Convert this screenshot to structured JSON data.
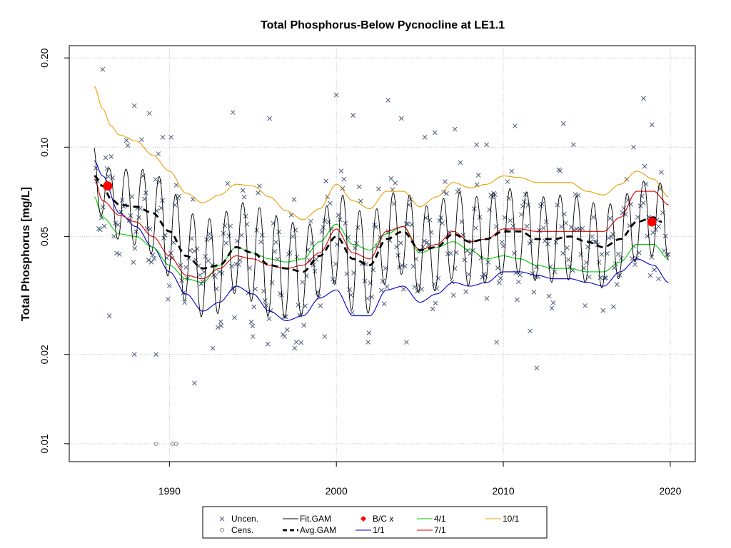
{
  "chart_data": {
    "type": "line",
    "title": "Total Phosphorus-Below Pycnocline at LE1.1",
    "xlabel": "",
    "ylabel": "Total Phosphorus [mg/L]",
    "x_scale": "linear",
    "y_scale": "log",
    "xlim": [
      1984,
      2021.5
    ],
    "ylim": [
      0.0087,
      0.22
    ],
    "x_ticks": [
      1990,
      2000,
      2010,
      2020
    ],
    "x_tick_labels": [
      "1990",
      "2000",
      "2010",
      "2020"
    ],
    "y_ticks": [
      0.01,
      0.02,
      0.05,
      0.1,
      0.2
    ],
    "y_tick_labels": [
      "0.01",
      "0.02",
      "0.05",
      "0.10",
      "0.20"
    ],
    "grid": true,
    "legend_position": "bottom",
    "colors": {
      "uncensored": "#4a5a7a",
      "censored": "#808080",
      "fit_gam": "#000000",
      "avg_gam": "#000000",
      "bc": "#ff0000",
      "q1_1": "#0000cc",
      "q4_1": "#00cc00",
      "q7_1": "#dd0000",
      "q10_1": "#e8a000",
      "grid": "#c0c0c0"
    },
    "legend": [
      {
        "key": "uncen",
        "label": "Uncen.",
        "symbol": "x",
        "color": "#4a5a7a"
      },
      {
        "key": "cens",
        "label": "Cens.",
        "symbol": "o",
        "color": "#808080"
      },
      {
        "key": "fit",
        "label": "Fit.GAM",
        "symbol": "line",
        "color": "#000000"
      },
      {
        "key": "avg",
        "label": "Avg.GAM",
        "symbol": "dash",
        "color": "#000000"
      },
      {
        "key": "bc",
        "label": "B/C x",
        "symbol": "diamond",
        "color": "#ff0000"
      },
      {
        "key": "q1",
        "label": "1/1",
        "symbol": "line",
        "color": "#0000cc"
      },
      {
        "key": "q4",
        "label": "4/1",
        "symbol": "line",
        "color": "#00cc00"
      },
      {
        "key": "q7",
        "label": "7/1",
        "symbol": "line",
        "color": "#dd0000"
      },
      {
        "key": "q10",
        "label": "10/1",
        "symbol": "line",
        "color": "#e8a000"
      }
    ],
    "series": [
      {
        "name": "Avg.GAM",
        "x": [
          1985.5,
          1986,
          1986.5,
          1987,
          1988,
          1989,
          1990,
          1991,
          1992,
          1993,
          1994,
          1995,
          1996,
          1997,
          1998,
          1999,
          2000,
          2001,
          2002,
          2003,
          2004,
          2005,
          2006,
          2007,
          2008,
          2009,
          2010,
          2011,
          2012,
          2013,
          2014,
          2015,
          2016,
          2017,
          2018,
          2019,
          2019.5
        ],
        "y": [
          0.08,
          0.074,
          0.067,
          0.064,
          0.063,
          0.06,
          0.052,
          0.043,
          0.039,
          0.04,
          0.046,
          0.044,
          0.04,
          0.039,
          0.038,
          0.043,
          0.05,
          0.042,
          0.04,
          0.049,
          0.052,
          0.045,
          0.046,
          0.051,
          0.048,
          0.049,
          0.052,
          0.052,
          0.049,
          0.049,
          0.05,
          0.048,
          0.046,
          0.049,
          0.056,
          0.058,
          0.056
        ]
      },
      {
        "name": "1/1",
        "x": [
          1985.5,
          1986,
          1987,
          1988,
          1989,
          1990,
          1991,
          1992,
          1993,
          1994,
          1995,
          1996,
          1997,
          1998,
          1999,
          2000,
          2001,
          2002,
          2003,
          2004,
          2005,
          2006,
          2007,
          2008,
          2009,
          2010,
          2011,
          2012,
          2013,
          2014,
          2015,
          2016,
          2017,
          2018,
          2019,
          2019.9
        ],
        "y": [
          0.09,
          0.08,
          0.06,
          0.054,
          0.046,
          0.038,
          0.032,
          0.028,
          0.03,
          0.034,
          0.032,
          0.028,
          0.026,
          0.027,
          0.031,
          0.033,
          0.027,
          0.027,
          0.033,
          0.034,
          0.03,
          0.032,
          0.035,
          0.034,
          0.035,
          0.038,
          0.038,
          0.037,
          0.036,
          0.036,
          0.035,
          0.034,
          0.038,
          0.042,
          0.04,
          0.035
        ]
      },
      {
        "name": "4/1",
        "x": [
          1985.5,
          1986,
          1987,
          1988,
          1989,
          1990,
          1991,
          1992,
          1993,
          1994,
          1995,
          1996,
          1997,
          1998,
          1999,
          2000,
          2001,
          2002,
          2003,
          2004,
          2005,
          2006,
          2007,
          2008,
          2009,
          2010,
          2011,
          2012,
          2013,
          2014,
          2015,
          2016,
          2017,
          2018,
          2019,
          2019.9
        ],
        "y": [
          0.068,
          0.058,
          0.051,
          0.05,
          0.046,
          0.04,
          0.036,
          0.035,
          0.04,
          0.046,
          0.044,
          0.042,
          0.041,
          0.042,
          0.048,
          0.055,
          0.047,
          0.045,
          0.051,
          0.054,
          0.044,
          0.046,
          0.048,
          0.045,
          0.042,
          0.043,
          0.042,
          0.04,
          0.039,
          0.039,
          0.038,
          0.038,
          0.041,
          0.047,
          0.047,
          0.042
        ]
      },
      {
        "name": "7/1",
        "x": [
          1985.5,
          1986,
          1987,
          1988,
          1989,
          1990,
          1991,
          1992,
          1993,
          1994,
          1995,
          1996,
          1997,
          1998,
          1999,
          2000,
          2001,
          2002,
          2003,
          2004,
          2005,
          2006,
          2007,
          2008,
          2009,
          2010,
          2011,
          2012,
          2013,
          2014,
          2015,
          2016,
          2017,
          2018,
          2019,
          2019.9
        ],
        "y": [
          0.078,
          0.066,
          0.059,
          0.056,
          0.05,
          0.043,
          0.037,
          0.036,
          0.039,
          0.043,
          0.042,
          0.04,
          0.039,
          0.04,
          0.044,
          0.053,
          0.044,
          0.042,
          0.052,
          0.054,
          0.045,
          0.047,
          0.052,
          0.048,
          0.049,
          0.053,
          0.053,
          0.052,
          0.052,
          0.052,
          0.052,
          0.052,
          0.058,
          0.071,
          0.071,
          0.064
        ]
      },
      {
        "name": "10/1",
        "x": [
          1985.5,
          1986,
          1986.5,
          1987,
          1988,
          1989,
          1990,
          1991,
          1992,
          1993,
          1994,
          1995,
          1996,
          1997,
          1998,
          1999,
          2000,
          2001,
          2002,
          2003,
          2004,
          2005,
          2006,
          2007,
          2008,
          2009,
          2010,
          2011,
          2012,
          2013,
          2014,
          2015,
          2016,
          2017,
          2018,
          2019,
          2019.9
        ],
        "y": [
          0.16,
          0.135,
          0.118,
          0.11,
          0.105,
          0.094,
          0.083,
          0.07,
          0.065,
          0.069,
          0.075,
          0.074,
          0.068,
          0.061,
          0.057,
          0.062,
          0.075,
          0.066,
          0.062,
          0.071,
          0.071,
          0.063,
          0.068,
          0.076,
          0.073,
          0.075,
          0.08,
          0.079,
          0.076,
          0.076,
          0.076,
          0.071,
          0.069,
          0.075,
          0.083,
          0.078,
          0.068
        ]
      }
    ],
    "bc_points": {
      "x": [
        1986.3,
        2018.9
      ],
      "y": [
        0.074,
        0.056
      ]
    },
    "censored": {
      "x": [
        1989.2,
        1990.2,
        1990.4
      ],
      "y": [
        0.01,
        0.01,
        0.01
      ]
    },
    "uncensored_outliers": {
      "x": [
        1986.0,
        1986.4,
        1987.9,
        1988.8,
        1989.2,
        1989.6,
        1990.1,
        1992.6,
        1993.8,
        1995.0,
        1996.0,
        1996.9,
        1997.6,
        1999.3,
        2000.0,
        2001.9,
        2003.1,
        2003.9,
        2005.3,
        2005.9,
        2007.1,
        2008.4,
        2009.6,
        2010.7,
        2011.6,
        2013.6,
        2014.2,
        2016.6,
        2017.8,
        2018.4,
        2018.9,
        2019.3,
        1991.5,
        1987.9,
        2001.0,
        2012.0,
        1997.5,
        2009.0,
        2004.2,
        1993.1
      ],
      "y": [
        0.183,
        0.027,
        0.02,
        0.13,
        0.02,
        0.108,
        0.108,
        0.021,
        0.131,
        0.023,
        0.125,
        0.023,
        0.022,
        0.023,
        0.15,
        0.022,
        0.144,
        0.125,
        0.108,
        0.112,
        0.115,
        0.102,
        0.022,
        0.118,
        0.024,
        0.12,
        0.102,
        0.029,
        0.1,
        0.146,
        0.119,
        0.036,
        0.016,
        0.138,
        0.128,
        0.018,
        0.021,
        0.102,
        0.022,
        0.025
      ]
    }
  }
}
